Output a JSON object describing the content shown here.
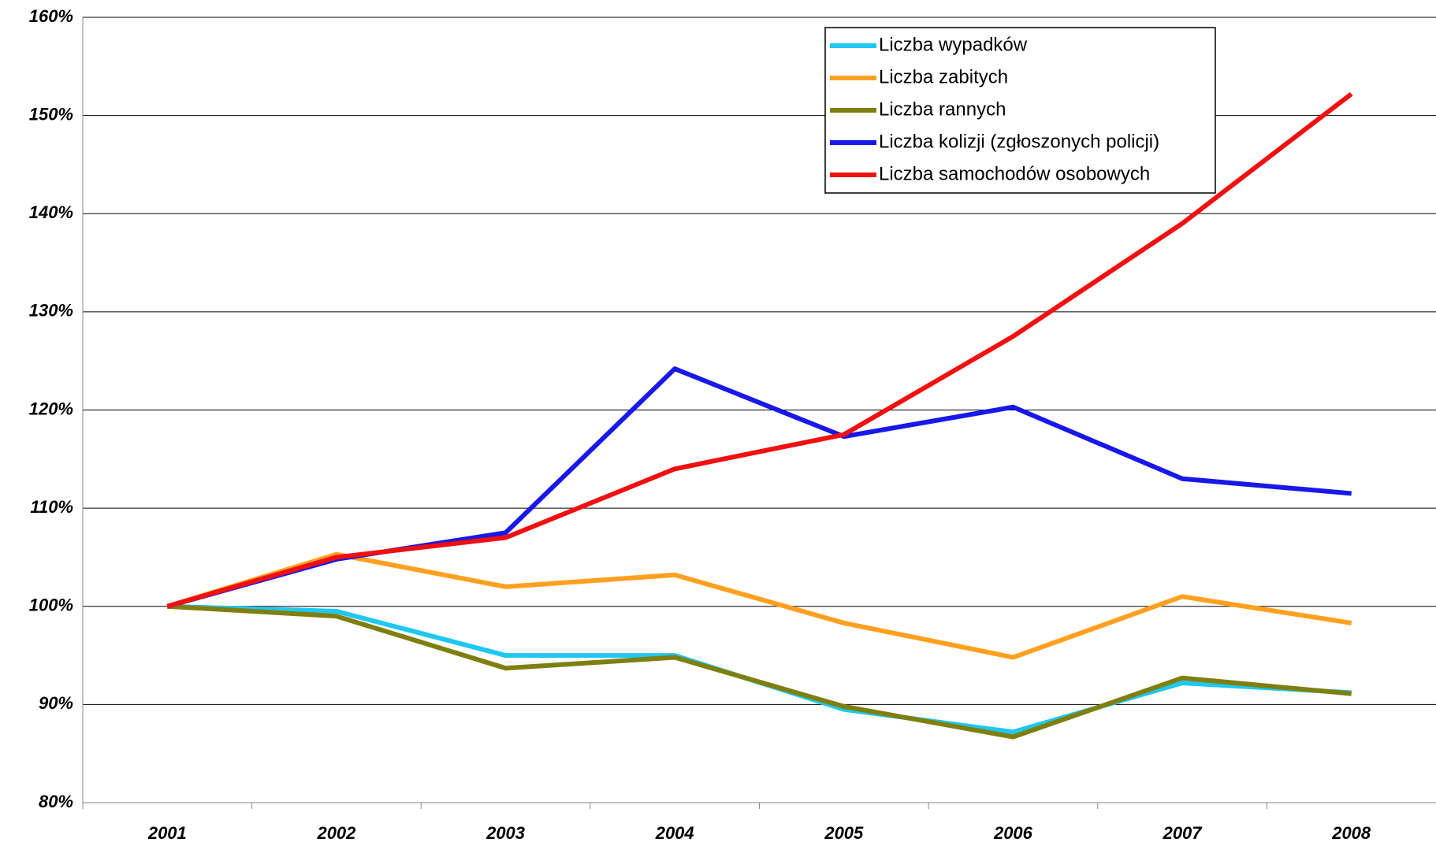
{
  "chart_data": {
    "type": "line",
    "categories": [
      "2001",
      "2002",
      "2003",
      "2004",
      "2005",
      "2006",
      "2007",
      "2008"
    ],
    "series": [
      {
        "name": "Liczba wypadków",
        "color": "#1ec8f0",
        "values": [
          100,
          99.5,
          95,
          95,
          89.5,
          87.2,
          92.2,
          91.2
        ]
      },
      {
        "name": "Liczba zabitych",
        "color": "#ffa020",
        "values": [
          100,
          105.3,
          102,
          103.2,
          98.3,
          94.8,
          101,
          98.3
        ]
      },
      {
        "name": "Liczba rannych",
        "color": "#7f7f10",
        "values": [
          100,
          99,
          93.7,
          94.8,
          89.8,
          86.7,
          92.7,
          91.1
        ]
      },
      {
        "name": "Liczba kolizji (zgłoszonych policji)",
        "color": "#1818e8",
        "values": [
          100,
          104.8,
          107.5,
          124.2,
          117.3,
          120.3,
          113,
          111.5
        ]
      },
      {
        "name": "Liczba samochodów osobowych",
        "color": "#f01010",
        "values": [
          100,
          105,
          107,
          114,
          117.5,
          127.5,
          139,
          152.2
        ]
      }
    ],
    "ylim": [
      80,
      160
    ],
    "yticks": [
      {
        "value": 80,
        "label": "80%"
      },
      {
        "value": 90,
        "label": "90%"
      },
      {
        "value": 100,
        "label": "100%"
      },
      {
        "value": 110,
        "label": "110%"
      },
      {
        "value": 120,
        "label": "120%"
      },
      {
        "value": 130,
        "label": "130%"
      },
      {
        "value": 140,
        "label": "140%"
      },
      {
        "value": 150,
        "label": "150%"
      },
      {
        "value": 160,
        "label": "160%"
      }
    ],
    "grid": true,
    "legend": "top-right"
  }
}
